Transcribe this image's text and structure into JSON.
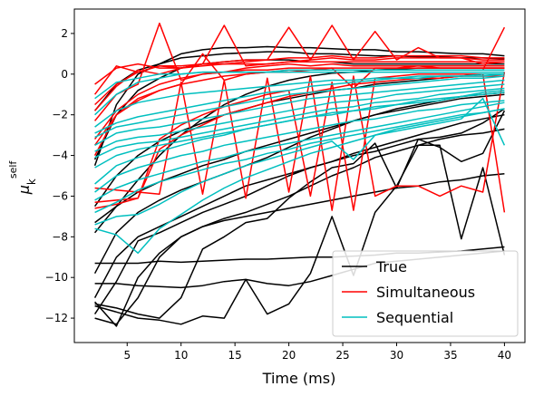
{
  "chart_data": {
    "type": "line",
    "xlabel": "Time (ms)",
    "ylabel": {
      "base": "μ",
      "sub": "k",
      "sup": "self"
    },
    "xlim": [
      0.1,
      41.9
    ],
    "ylim": [
      -13.2,
      3.2
    ],
    "x_ticks": [
      5,
      10,
      15,
      20,
      25,
      30,
      35,
      40
    ],
    "y_ticks": [
      2,
      0,
      -2,
      -4,
      -6,
      -8,
      -10,
      -12
    ],
    "x": [
      2,
      4,
      6,
      8,
      10,
      12,
      14,
      16,
      18,
      20,
      22,
      24,
      26,
      28,
      30,
      32,
      34,
      36,
      38,
      40
    ],
    "legend": {
      "position": "lower right",
      "entries": [
        "True",
        "Simultaneous",
        "Sequential"
      ]
    },
    "colors": {
      "True": "#000000",
      "Simultaneous": "#ff0000",
      "Sequential": "#00bfbf"
    },
    "series": [
      {
        "group": "True",
        "values": [
          -7.8,
          -6.5,
          -5.2,
          -4.0,
          -3.0,
          -2.2,
          -1.5,
          -1.0,
          -0.6,
          -0.3,
          -0.1,
          0.05,
          0.1,
          0.2,
          0.25,
          0.3,
          0.3,
          0.3,
          0.3,
          0.3
        ]
      },
      {
        "group": "True",
        "values": [
          -4.5,
          -1.5,
          0.0,
          0.5,
          1.0,
          1.2,
          1.3,
          1.3,
          1.35,
          1.3,
          1.3,
          1.25,
          1.2,
          1.2,
          1.1,
          1.1,
          1.05,
          1.0,
          1.0,
          0.9
        ]
      },
      {
        "group": "True",
        "values": [
          -1.8,
          -0.5,
          0.2,
          0.5,
          0.8,
          0.9,
          1.0,
          1.05,
          1.1,
          1.1,
          1.0,
          1.0,
          0.95,
          0.9,
          0.9,
          0.85,
          0.85,
          0.8,
          0.8,
          0.75
        ]
      },
      {
        "group": "True",
        "values": [
          -4.2,
          -2.0,
          -0.8,
          -0.2,
          0.3,
          0.5,
          0.6,
          0.7,
          0.7,
          0.7,
          0.6,
          0.6,
          0.5,
          0.5,
          0.5,
          0.5,
          0.5,
          0.5,
          0.5,
          0.5
        ]
      },
      {
        "group": "True",
        "values": [
          -6.5,
          -5.0,
          -4.0,
          -3.3,
          -2.8,
          -2.4,
          -2.0,
          -1.7,
          -1.4,
          -1.2,
          -1.0,
          -0.8,
          -0.7,
          -0.5,
          -0.4,
          -0.3,
          -0.2,
          -0.1,
          0.0,
          0.0
        ]
      },
      {
        "group": "True",
        "values": [
          -7.3,
          -6.5,
          -5.8,
          -5.3,
          -4.9,
          -4.5,
          -4.2,
          -3.8,
          -3.5,
          -3.2,
          -2.9,
          -2.6,
          -2.3,
          -2.0,
          -1.8,
          -1.6,
          -1.4,
          -1.2,
          -1.1,
          -1.0
        ]
      },
      {
        "group": "True",
        "values": [
          -9.8,
          -7.8,
          -6.8,
          -6.2,
          -5.7,
          -5.3,
          -4.9,
          -4.5,
          -4.1,
          -3.6,
          -3.1,
          -2.7,
          -2.3,
          -2.0,
          -1.7,
          -1.5,
          -1.3,
          -1.1,
          -1.0,
          -0.9
        ]
      },
      {
        "group": "True",
        "values": [
          -11.0,
          -9.0,
          -8.0,
          -7.5,
          -7.0,
          -6.5,
          -6.0,
          -5.5,
          -5.2,
          -4.9,
          -4.6,
          -4.3,
          -3.9,
          -3.6,
          -3.3,
          -3.0,
          -2.7,
          -2.4,
          -2.2,
          -2.0
        ]
      },
      {
        "group": "True",
        "values": [
          -11.8,
          -10.2,
          -8.2,
          -7.8,
          -7.3,
          -6.8,
          -6.4,
          -6.0,
          -5.5,
          -5.0,
          -4.6,
          -4.3,
          -4.0,
          -3.8,
          -3.5,
          -3.2,
          -3.1,
          -2.9,
          -2.4,
          -1.7
        ]
      },
      {
        "group": "True",
        "values": [
          -11.2,
          -12.4,
          -10.0,
          -8.8,
          -8.0,
          -7.5,
          -7.1,
          -6.8,
          -6.4,
          -6.0,
          -5.5,
          -5.0,
          -4.6,
          -4.1,
          -3.8,
          -3.5,
          -3.2,
          -3.0,
          -2.9,
          -2.7
        ]
      },
      {
        "group": "True",
        "values": [
          -12.0,
          -12.3,
          -11.0,
          -9.0,
          -8.0,
          -7.5,
          -7.2,
          -7.0,
          -6.8,
          -6.6,
          -6.4,
          -6.2,
          -6.0,
          -5.8,
          -5.6,
          -5.5,
          -5.3,
          -5.2,
          -5.0,
          -4.9
        ]
      },
      {
        "group": "True",
        "values": [
          -11.3,
          -11.5,
          -11.8,
          -12.0,
          -11.0,
          -8.6,
          -8.0,
          -7.3,
          -7.1,
          -6.1,
          -5.3,
          -4.6,
          -4.4,
          -3.4,
          -5.6,
          -3.2,
          -3.6,
          -4.3,
          -3.9,
          -1.8
        ]
      },
      {
        "group": "True",
        "values": [
          -11.4,
          -11.7,
          -12.0,
          -12.1,
          -12.3,
          -11.9,
          -12.0,
          -10.1,
          -11.8,
          -11.3,
          -9.8,
          -7.0,
          -9.9,
          -6.8,
          -5.5,
          -3.5,
          -3.5,
          -8.1,
          -4.6,
          -8.9
        ]
      },
      {
        "group": "True",
        "values": [
          -10.3,
          -10.3,
          -10.4,
          -10.45,
          -10.5,
          -10.4,
          -10.2,
          -10.1,
          -10.3,
          -10.4,
          -10.2,
          -9.9,
          -9.6,
          -9.3,
          -9.2,
          -9.1,
          -9.0,
          -8.9,
          -8.8,
          -8.7
        ]
      },
      {
        "group": "True",
        "values": [
          -9.3,
          -9.3,
          -9.3,
          -9.2,
          -9.25,
          -9.2,
          -9.15,
          -9.1,
          -9.1,
          -9.05,
          -9.0,
          -9.0,
          -8.95,
          -8.9,
          -8.8,
          -8.8,
          -8.75,
          -8.7,
          -8.6,
          -8.5
        ]
      },
      {
        "group": "Simultaneous",
        "values": [
          -0.5,
          0.3,
          0.5,
          0.3,
          0.3,
          0.4,
          0.5,
          0.5,
          0.5,
          0.6,
          0.6,
          0.6,
          0.6,
          0.6,
          0.6,
          0.6,
          0.6,
          0.6,
          0.6,
          0.6
        ]
      },
      {
        "group": "Simultaneous",
        "values": [
          -1.0,
          0.4,
          0.1,
          0.4,
          0.4,
          0.5,
          2.4,
          0.4,
          0.5,
          0.6,
          0.7,
          2.4,
          0.7,
          0.7,
          0.8,
          0.8,
          0.8,
          0.8,
          0.7,
          0.7
        ]
      },
      {
        "group": "Simultaneous",
        "values": [
          -1.5,
          -0.5,
          0.1,
          0.4,
          0.3,
          0.5,
          0.6,
          0.7,
          0.7,
          0.8,
          0.8,
          0.9,
          0.8,
          0.8,
          0.9,
          0.9,
          0.9,
          0.9,
          0.8,
          0.8
        ]
      },
      {
        "group": "Simultaneous",
        "values": [
          -1.8,
          -0.6,
          0.2,
          0.0,
          0.3,
          0.5,
          0.5,
          0.6,
          0.7,
          2.3,
          0.7,
          0.8,
          0.7,
          2.1,
          0.7,
          1.3,
          0.8,
          0.8,
          0.5,
          0.6
        ]
      },
      {
        "group": "Simultaneous",
        "values": [
          -2.3,
          -1.0,
          -0.5,
          2.5,
          -0.3,
          0.0,
          0.1,
          0.3,
          0.4,
          0.5,
          0.4,
          0.5,
          0.4,
          0.4,
          0.4,
          0.4,
          0.4,
          0.4,
          0.4,
          0.4
        ]
      },
      {
        "group": "Simultaneous",
        "values": [
          -3.2,
          -1.8,
          -1.0,
          -0.5,
          -0.2,
          0.0,
          0.1,
          0.2,
          0.2,
          0.3,
          0.3,
          0.3,
          0.3,
          0.3,
          0.3,
          0.3,
          0.3,
          0.3,
          0.3,
          0.3
        ]
      },
      {
        "group": "Simultaneous",
        "values": [
          -4.0,
          -2.0,
          -1.3,
          -0.8,
          -0.5,
          -0.3,
          -0.1,
          0.0,
          0.1,
          0.1,
          0.2,
          0.2,
          0.2,
          0.2,
          0.2,
          0.2,
          0.2,
          0.2,
          0.2,
          2.3
        ]
      },
      {
        "group": "Simultaneous",
        "values": [
          -3.5,
          -2.0,
          -1.2,
          -0.8,
          -0.5,
          1.0,
          -0.3,
          0.0,
          0.1,
          0.2,
          0.2,
          0.3,
          -0.7,
          0.3,
          0.3,
          0.4,
          0.3,
          0.3,
          0.3,
          0.3
        ]
      },
      {
        "group": "Simultaneous",
        "values": [
          -5.6,
          -5.7,
          -5.8,
          -5.9,
          -0.4,
          -5.9,
          -0.3,
          -6.1,
          -0.2,
          -5.8,
          -0.1,
          -6.7,
          -0.1,
          -6.0,
          -5.5,
          -5.5,
          -6.0,
          -5.5,
          -5.8,
          0.1
        ]
      },
      {
        "group": "Simultaneous",
        "values": [
          -6.3,
          -6.2,
          -6.1,
          -3.2,
          -2.5,
          -2.0,
          -1.6,
          -1.3,
          -1.0,
          -0.8,
          -6.0,
          -0.4,
          -6.7,
          -0.2,
          -0.1,
          0.0,
          0.0,
          0.0,
          0.0,
          -6.8
        ]
      },
      {
        "group": "Simultaneous",
        "values": [
          -6.6,
          -6.4,
          -6.1,
          -3.7,
          -3.0,
          -2.5,
          -2.0,
          -1.7,
          -1.4,
          -1.1,
          -0.9,
          -0.7,
          -0.5,
          -0.4,
          -0.3,
          -0.2,
          -0.2,
          -0.1,
          -0.1,
          -0.1
        ]
      },
      {
        "group": "Sequential",
        "values": [
          -1.2,
          -0.4,
          -0.2,
          0.0,
          0.0,
          0.1,
          0.1,
          0.1,
          0.1,
          0.1,
          0.1,
          0.1,
          0.1,
          0.1,
          0.1,
          0.1,
          0.1,
          0.1,
          0.1,
          0.1
        ]
      },
      {
        "group": "Sequential",
        "values": [
          -2.0,
          -1.0,
          -0.4,
          -0.2,
          0.0,
          0.1,
          0.1,
          0.1,
          0.1,
          0.2,
          0.2,
          0.2,
          0.2,
          0.2,
          0.2,
          0.2,
          0.2,
          0.2,
          0.2,
          0.2
        ]
      },
      {
        "group": "Sequential",
        "values": [
          -2.6,
          -1.8,
          -1.4,
          -1.2,
          -1.0,
          -0.9,
          -0.8,
          -0.7,
          -0.6,
          -0.5,
          -0.4,
          -0.3,
          -0.3,
          -0.2,
          -0.2,
          -0.1,
          -0.1,
          -0.1,
          0.0,
          0.0
        ]
      },
      {
        "group": "Sequential",
        "values": [
          -2.9,
          -2.4,
          -2.1,
          -1.9,
          -1.7,
          -1.5,
          -1.3,
          -1.1,
          -0.9,
          -0.8,
          -0.6,
          -0.5,
          -0.4,
          -0.3,
          -0.2,
          -0.2,
          -0.1,
          -0.1,
          -0.1,
          0.0
        ]
      },
      {
        "group": "Sequential",
        "values": [
          -3.1,
          -2.6,
          -2.4,
          -2.2,
          -2.0,
          -1.8,
          -1.6,
          -1.4,
          -1.2,
          -1.0,
          -0.9,
          -0.8,
          -0.7,
          -0.6,
          -0.5,
          -0.4,
          -0.3,
          -0.2,
          -0.2,
          -0.1
        ]
      },
      {
        "group": "Sequential",
        "values": [
          -3.5,
          -2.9,
          -2.7,
          -2.6,
          -2.4,
          -2.2,
          -2.0,
          -1.8,
          -1.6,
          -1.4,
          -1.2,
          -1.1,
          -1.0,
          -0.9,
          -0.8,
          -0.7,
          -0.6,
          -0.5,
          -0.4,
          -0.3
        ]
      },
      {
        "group": "Sequential",
        "values": [
          -3.8,
          -3.3,
          -3.1,
          -3.0,
          -2.8,
          -2.6,
          -2.4,
          -2.2,
          -2.0,
          -1.8,
          -1.6,
          -1.4,
          -1.3,
          -1.2,
          -1.0,
          -0.9,
          -0.8,
          -0.7,
          -0.6,
          -0.5
        ]
      },
      {
        "group": "Sequential",
        "values": [
          -4.1,
          -3.6,
          -3.4,
          -3.3,
          -3.1,
          -2.9,
          -2.7,
          -2.5,
          -2.3,
          -2.1,
          -1.9,
          -1.7,
          -1.6,
          -1.4,
          -1.3,
          -1.2,
          -1.0,
          -0.9,
          -0.8,
          -0.7
        ]
      },
      {
        "group": "Sequential",
        "values": [
          -4.6,
          -4.0,
          -3.7,
          -3.5,
          -3.3,
          -3.1,
          -2.9,
          -2.7,
          -2.5,
          -2.3,
          -2.1,
          -2.0,
          -1.8,
          -1.7,
          -1.5,
          -1.4,
          -1.3,
          -1.1,
          -1.0,
          -0.9
        ]
      },
      {
        "group": "Sequential",
        "values": [
          -5.4,
          -4.5,
          -4.1,
          -3.8,
          -3.5,
          -3.2,
          -3.0,
          -2.7,
          -2.5,
          -2.3,
          -2.1,
          -1.9,
          -1.8,
          -1.6,
          -1.5,
          -1.3,
          -1.2,
          -1.1,
          -0.9,
          -0.8
        ]
      },
      {
        "group": "Sequential",
        "values": [
          -5.8,
          -5.0,
          -4.6,
          -4.3,
          -4.0,
          -3.8,
          -3.5,
          -3.3,
          -3.1,
          -2.9,
          -2.7,
          -2.5,
          -2.3,
          -2.2,
          -2.0,
          -1.8,
          -1.7,
          -1.5,
          -1.4,
          -1.3
        ]
      },
      {
        "group": "Sequential",
        "values": [
          -6.2,
          -5.6,
          -5.2,
          -4.9,
          -4.6,
          -4.3,
          -4.1,
          -3.8,
          -3.6,
          -3.4,
          -3.2,
          -3.0,
          -2.8,
          -2.6,
          -2.4,
          -2.2,
          -2.0,
          -1.8,
          -1.6,
          -1.4
        ]
      },
      {
        "group": "Sequential",
        "values": [
          -6.8,
          -6.3,
          -5.7,
          -5.3,
          -5.0,
          -4.7,
          -4.4,
          -4.2,
          -3.9,
          -3.7,
          -3.4,
          -3.2,
          -3.0,
          -2.8,
          -2.6,
          -2.4,
          -2.2,
          -2.0,
          -1.9,
          -1.7
        ]
      },
      {
        "group": "Sequential",
        "values": [
          -7.4,
          -7.0,
          -6.9,
          -6.4,
          -5.8,
          -5.3,
          -4.9,
          -4.5,
          -4.2,
          -3.9,
          -3.6,
          -3.3,
          -4.2,
          -3.0,
          -2.8,
          -2.6,
          -2.4,
          -2.2,
          -1.2,
          -3.5
        ]
      },
      {
        "group": "Sequential",
        "values": [
          -7.6,
          -7.9,
          -8.8,
          -7.6,
          -6.9,
          -6.2,
          -5.6,
          -5.1,
          -4.7,
          -4.3,
          -3.9,
          -3.6,
          -3.3,
          -3.0,
          -2.7,
          -2.5,
          -2.3,
          -2.1,
          -1.9,
          -1.7
        ]
      }
    ]
  }
}
